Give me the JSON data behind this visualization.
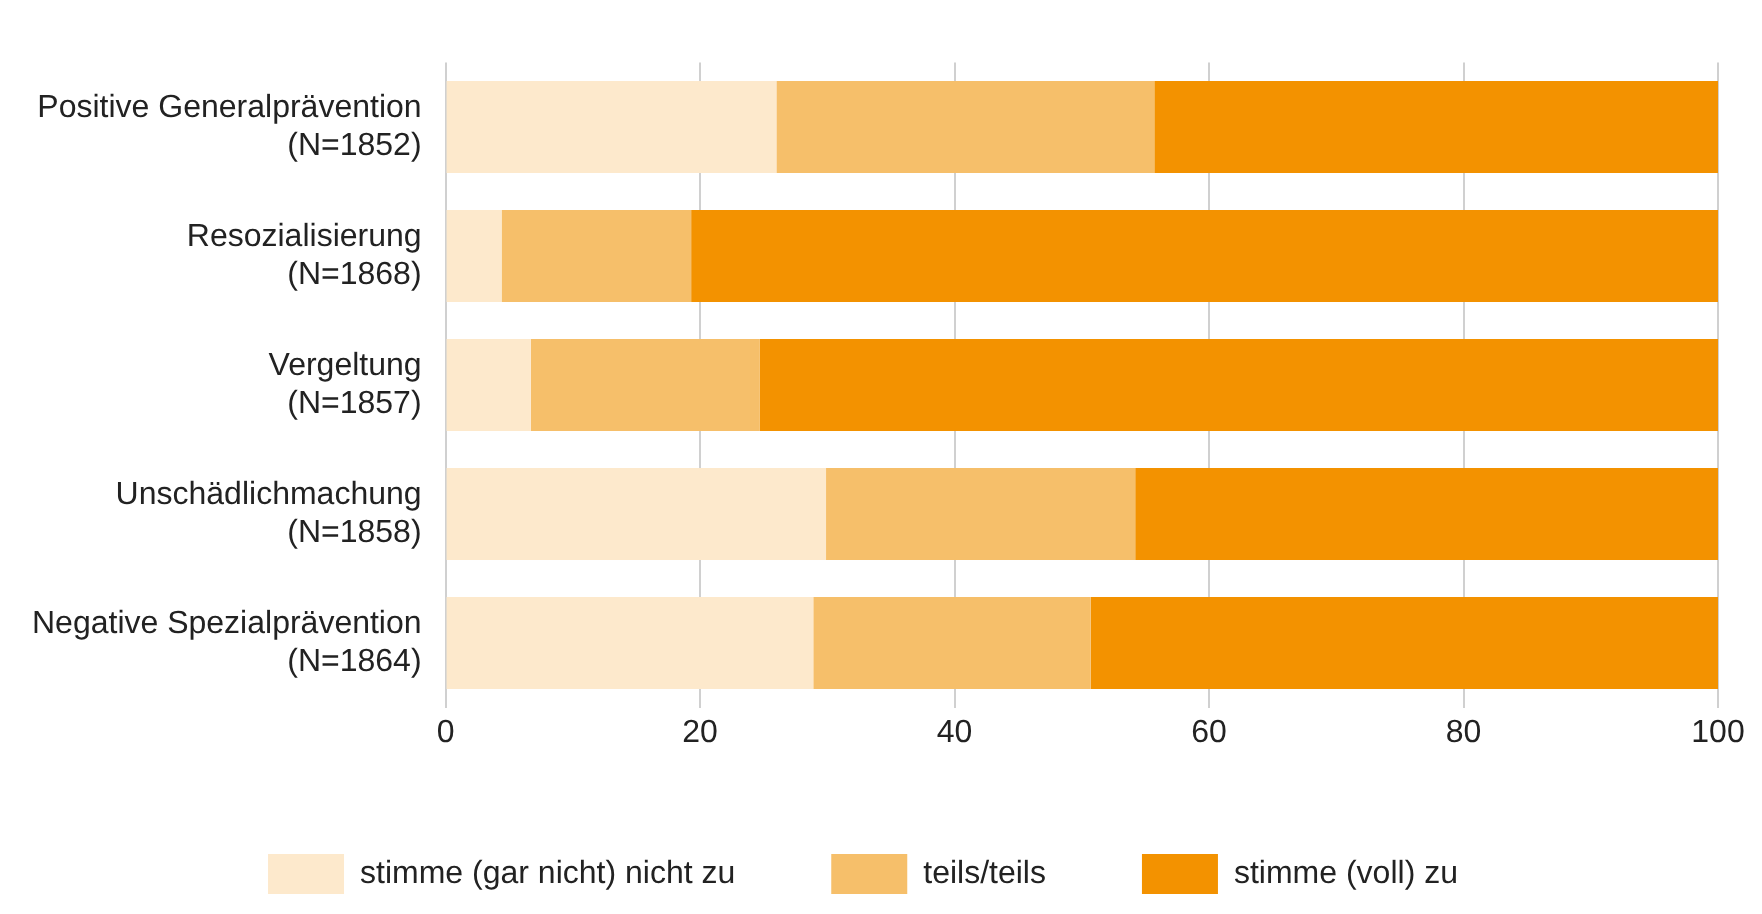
{
  "chart_data": {
    "type": "bar",
    "orientation": "horizontal",
    "stacked": true,
    "categories": [
      "Positive Generalprävention\n(N=1852)",
      "Resozialisierung\n(N=1868)",
      "Vergeltung\n(N=1857)",
      "Unschädlichmachung\n(N=1858)",
      "Negative Spezialprävention\n(N=1864)"
    ],
    "series": [
      {
        "name": "stimme (gar nicht) nicht zu",
        "color": "#fde9cc",
        "values": [
          26.0,
          4.4,
          6.7,
          29.9,
          28.9
        ]
      },
      {
        "name": "teils/teils",
        "color": "#f6bf6a",
        "values": [
          29.7,
          14.9,
          18.0,
          24.3,
          21.8
        ]
      },
      {
        "name": "stimme (voll) zu",
        "color": "#f39200",
        "values": [
          44.3,
          80.7,
          75.3,
          45.8,
          49.3
        ]
      }
    ],
    "xlim": [
      0,
      100
    ],
    "xticks": [
      0,
      20,
      40,
      60,
      80,
      100
    ],
    "grid": "x",
    "legend": "bottom"
  }
}
